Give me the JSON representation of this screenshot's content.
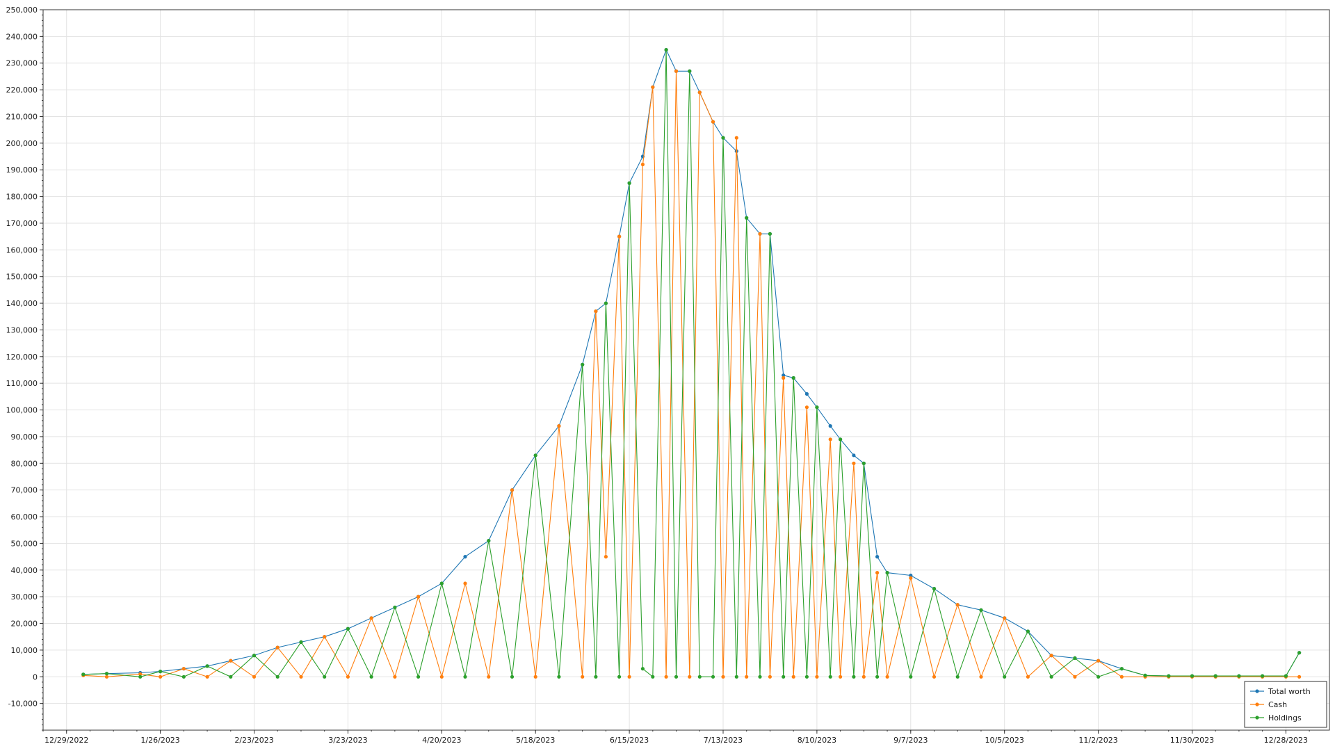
{
  "chart_data": {
    "type": "line",
    "title": "",
    "xlabel": "",
    "ylabel": "",
    "ylim": [
      -20000,
      250000
    ],
    "xlim": [
      "2022-12-22",
      "2024-01-10"
    ],
    "grid": true,
    "legend_placement": "bottom-right",
    "y_ticks": [
      "-10,000",
      "0",
      "10,000",
      "20,000",
      "30,000",
      "40,000",
      "50,000",
      "60,000",
      "70,000",
      "80,000",
      "90,000",
      "100,000",
      "110,000",
      "120,000",
      "130,000",
      "140,000",
      "150,000",
      "160,000",
      "170,000",
      "180,000",
      "190,000",
      "200,000",
      "210,000",
      "220,000",
      "230,000",
      "240,000",
      "250,000"
    ],
    "x_ticks": [
      "12/29/2022",
      "1/26/2023",
      "2/23/2023",
      "3/23/2023",
      "4/20/2023",
      "5/18/2023",
      "6/15/2023",
      "7/13/2023",
      "8/10/2023",
      "9/7/2023",
      "10/5/2023",
      "11/2/2023",
      "11/30/2023",
      "12/28/2023"
    ],
    "series": [
      {
        "name": "Total worth",
        "color": "#1f77b4",
        "x": [
          "2023-01-03",
          "2023-01-10",
          "2023-01-20",
          "2023-01-26",
          "2023-02-02",
          "2023-02-09",
          "2023-02-16",
          "2023-02-23",
          "2023-03-02",
          "2023-03-09",
          "2023-03-16",
          "2023-03-23",
          "2023-03-30",
          "2023-04-06",
          "2023-04-13",
          "2023-04-20",
          "2023-04-27",
          "2023-05-04",
          "2023-05-11",
          "2023-05-18",
          "2023-05-25",
          "2023-06-01",
          "2023-06-05",
          "2023-06-08",
          "2023-06-12",
          "2023-06-15",
          "2023-06-19",
          "2023-06-22",
          "2023-06-26",
          "2023-06-29",
          "2023-07-03",
          "2023-07-06",
          "2023-07-10",
          "2023-07-13",
          "2023-07-17",
          "2023-07-20",
          "2023-07-24",
          "2023-07-27",
          "2023-07-31",
          "2023-08-03",
          "2023-08-07",
          "2023-08-10",
          "2023-08-14",
          "2023-08-17",
          "2023-08-21",
          "2023-08-24",
          "2023-08-28",
          "2023-08-31",
          "2023-09-07",
          "2023-09-14",
          "2023-09-21",
          "2023-09-28",
          "2023-10-05",
          "2023-10-12",
          "2023-10-19",
          "2023-10-26",
          "2023-11-02",
          "2023-11-09",
          "2023-11-16",
          "2023-11-23",
          "2023-11-30",
          "2023-12-07",
          "2023-12-14",
          "2023-12-21",
          "2023-12-28",
          "2024-01-01"
        ],
        "y": [
          900,
          1200,
          1500,
          2000,
          3000,
          4000,
          6000,
          8000,
          11000,
          13000,
          15000,
          18000,
          22000,
          26000,
          30000,
          35000,
          45000,
          51000,
          70000,
          83000,
          94000,
          117000,
          137000,
          140000,
          165000,
          185000,
          195000,
          221000,
          235000,
          227000,
          227000,
          219000,
          208000,
          202000,
          197000,
          172000,
          166000,
          166000,
          113000,
          112000,
          106000,
          101000,
          94000,
          89000,
          83000,
          80000,
          45000,
          39000,
          38000,
          33000,
          27000,
          25000,
          22000,
          17000,
          8000,
          7000,
          6000,
          3000,
          500,
          300,
          300,
          300,
          300,
          300,
          300,
          9000
        ]
      },
      {
        "name": "Cash",
        "color": "#ff7f0e",
        "x": [
          "2023-01-03",
          "2023-01-10",
          "2023-01-20",
          "2023-01-26",
          "2023-02-02",
          "2023-02-09",
          "2023-02-16",
          "2023-02-23",
          "2023-03-02",
          "2023-03-09",
          "2023-03-16",
          "2023-03-23",
          "2023-03-30",
          "2023-04-06",
          "2023-04-13",
          "2023-04-20",
          "2023-04-27",
          "2023-05-04",
          "2023-05-11",
          "2023-05-18",
          "2023-05-25",
          "2023-06-01",
          "2023-06-05",
          "2023-06-08",
          "2023-06-12",
          "2023-06-15",
          "2023-06-19",
          "2023-06-22",
          "2023-06-26",
          "2023-06-29",
          "2023-07-03",
          "2023-07-06",
          "2023-07-10",
          "2023-07-13",
          "2023-07-17",
          "2023-07-20",
          "2023-07-24",
          "2023-07-27",
          "2023-07-31",
          "2023-08-03",
          "2023-08-07",
          "2023-08-10",
          "2023-08-14",
          "2023-08-17",
          "2023-08-21",
          "2023-08-24",
          "2023-08-28",
          "2023-08-31",
          "2023-09-07",
          "2023-09-14",
          "2023-09-21",
          "2023-09-28",
          "2023-10-05",
          "2023-10-12",
          "2023-10-19",
          "2023-10-26",
          "2023-11-02",
          "2023-11-09",
          "2023-11-16",
          "2023-11-23",
          "2023-11-30",
          "2023-12-07",
          "2023-12-14",
          "2023-12-21",
          "2023-12-28",
          "2024-01-01"
        ],
        "y": [
          500,
          0,
          1000,
          0,
          3000,
          0,
          6000,
          0,
          11000,
          0,
          15000,
          0,
          22000,
          0,
          30000,
          0,
          35000,
          0,
          70000,
          0,
          94000,
          0,
          137000,
          45000,
          165000,
          0,
          192000,
          221000,
          0,
          227000,
          0,
          219000,
          208000,
          0,
          202000,
          0,
          166000,
          0,
          112000,
          0,
          101000,
          0,
          89000,
          0,
          80000,
          0,
          39000,
          0,
          37000,
          0,
          27000,
          0,
          22000,
          0,
          8000,
          0,
          6000,
          0,
          0,
          0,
          0,
          0,
          0,
          0,
          0,
          0
        ]
      },
      {
        "name": "Holdings",
        "color": "#2ca02c",
        "x": [
          "2023-01-03",
          "2023-01-10",
          "2023-01-20",
          "2023-01-26",
          "2023-02-02",
          "2023-02-09",
          "2023-02-16",
          "2023-02-23",
          "2023-03-02",
          "2023-03-09",
          "2023-03-16",
          "2023-03-23",
          "2023-03-30",
          "2023-04-06",
          "2023-04-13",
          "2023-04-20",
          "2023-04-27",
          "2023-05-04",
          "2023-05-11",
          "2023-05-18",
          "2023-05-25",
          "2023-06-01",
          "2023-06-05",
          "2023-06-08",
          "2023-06-12",
          "2023-06-15",
          "2023-06-19",
          "2023-06-22",
          "2023-06-26",
          "2023-06-29",
          "2023-07-03",
          "2023-07-06",
          "2023-07-10",
          "2023-07-13",
          "2023-07-17",
          "2023-07-20",
          "2023-07-24",
          "2023-07-27",
          "2023-07-31",
          "2023-08-03",
          "2023-08-07",
          "2023-08-10",
          "2023-08-14",
          "2023-08-17",
          "2023-08-21",
          "2023-08-24",
          "2023-08-28",
          "2023-08-31",
          "2023-09-07",
          "2023-09-14",
          "2023-09-21",
          "2023-09-28",
          "2023-10-05",
          "2023-10-12",
          "2023-10-19",
          "2023-10-26",
          "2023-11-02",
          "2023-11-09",
          "2023-11-16",
          "2023-11-23",
          "2023-11-30",
          "2023-12-07",
          "2023-12-14",
          "2023-12-21",
          "2023-12-28",
          "2024-01-01"
        ],
        "y": [
          900,
          1200,
          0,
          2000,
          0,
          4000,
          0,
          8000,
          0,
          13000,
          0,
          18000,
          0,
          26000,
          0,
          35000,
          0,
          51000,
          0,
          83000,
          0,
          117000,
          0,
          140000,
          0,
          185000,
          3000,
          0,
          235000,
          0,
          227000,
          0,
          0,
          202000,
          0,
          172000,
          0,
          166000,
          0,
          112000,
          0,
          101000,
          0,
          89000,
          0,
          80000,
          0,
          39000,
          0,
          33000,
          0,
          25000,
          0,
          17000,
          0,
          7000,
          0,
          3000,
          500,
          300,
          300,
          300,
          300,
          300,
          300,
          9000
        ]
      }
    ]
  }
}
